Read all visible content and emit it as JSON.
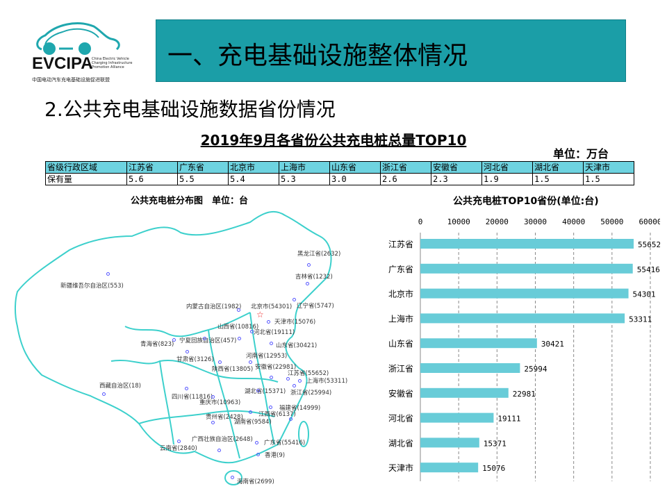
{
  "logo": {
    "name": "EVCIPA",
    "subtitle": "China Electric Vehicle Charging Infrastructure Promotion Alliance",
    "chinese": "中国电动汽车充电基础设施促进联盟"
  },
  "header": {
    "title": "一、充电基础设施整体情况"
  },
  "section": {
    "title": "2.公共充电基础设施数据省份情况"
  },
  "table": {
    "title": "2019年9月各省份公共充电桩总量TOP10",
    "unit": "单位：万台",
    "headers": [
      "省级行政区域",
      "江苏省",
      "广东省",
      "北京市",
      "上海市",
      "山东省",
      "浙江省",
      "安徽省",
      "河北省",
      "湖北省",
      "天津市"
    ],
    "row": [
      "保有量",
      "5.6",
      "5.5",
      "5.4",
      "5.3",
      "3.0",
      "2.6",
      "2.3",
      "1.9",
      "1.5",
      "1.5"
    ]
  },
  "map": {
    "title": "公共充电桩分布图　单位：台",
    "labels": [
      "新疆维吾尔自治区(553)",
      "西藏自治区(18)",
      "青海省(823)",
      "宁夏回族自治区(457)",
      "甘肃省(3126)",
      "内蒙古自治区(1982)",
      "北京市(54301)",
      "辽宁省(5747)",
      "黑龙江省(2632)",
      "吉林省(1232)",
      "天津市(15076)",
      "山西省(10816)",
      "河北省(19111)",
      "山东省(30421)",
      "河南省(12953)",
      "陕西省(13805)",
      "安徽省(22981)",
      "江苏省(55652)",
      "上海市(53311)",
      "浙江省(25994)",
      "湖北省(15371)",
      "四川省(11816)",
      "重庆市(10963)",
      "福建省(14999)",
      "江西省(6137)",
      "贵州省(2428)",
      "湖南省(9584)",
      "广西壮族自治区(2648)",
      "云南省(2840)",
      "广东省(55416)",
      "香港(9)",
      "海南省(2699)"
    ]
  },
  "chart_data": {
    "type": "bar",
    "title": "公共充电桩TOP10省份(单位:台)",
    "categories": [
      "江苏省",
      "广东省",
      "北京市",
      "上海市",
      "山东省",
      "浙江省",
      "安徽省",
      "河北省",
      "湖北省",
      "天津市"
    ],
    "values": [
      55652,
      55416,
      54301,
      53311,
      30421,
      25994,
      22981,
      19111,
      15371,
      15076
    ],
    "xlim": [
      0,
      60000
    ],
    "ticks": [
      "0",
      "10000",
      "20000",
      "30000",
      "40000",
      "50000",
      "60000"
    ],
    "bar_color": "#68ccd8",
    "grid": true
  }
}
